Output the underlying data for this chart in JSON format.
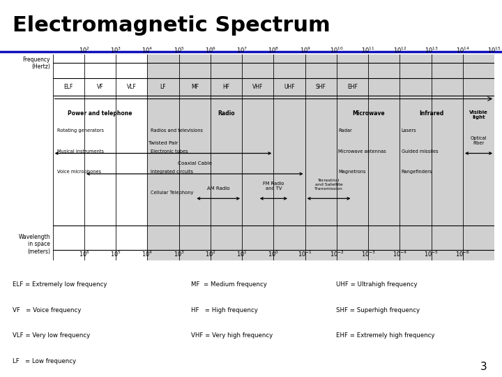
{
  "title": "Electromagnetic Spectrum",
  "title_color": "#000000",
  "title_underline_color": "#1111BB",
  "bg_color": "#ffffff",
  "freq_exponents": [
    2,
    3,
    4,
    5,
    6,
    7,
    8,
    9,
    10,
    11,
    12,
    13,
    14,
    15
  ],
  "wave_exponents": [
    6,
    5,
    4,
    3,
    2,
    1,
    0,
    -1,
    -2,
    -3,
    -4,
    -5,
    -6
  ],
  "band_labels": [
    "ELF",
    "VF",
    "VLF",
    "LF",
    "MF",
    "HF",
    "VHF",
    "UHF",
    "SHF",
    "EHF"
  ],
  "shaded_color": "#d0d0d0",
  "legend_items": [
    [
      "ELF = Extremely low frequency",
      "MF  = Medium frequency",
      "UHF = Ultrahigh frequency"
    ],
    [
      "VF   = Voice frequency",
      "HF   = High frequency",
      "SHF = Superhigh frequency"
    ],
    [
      "VLF = Very low frequency",
      "VHF = Very high frequency",
      "EHF = Extremely high frequency"
    ],
    [
      "LF   = Low frequency",
      "",
      ""
    ]
  ],
  "page_number": "3"
}
